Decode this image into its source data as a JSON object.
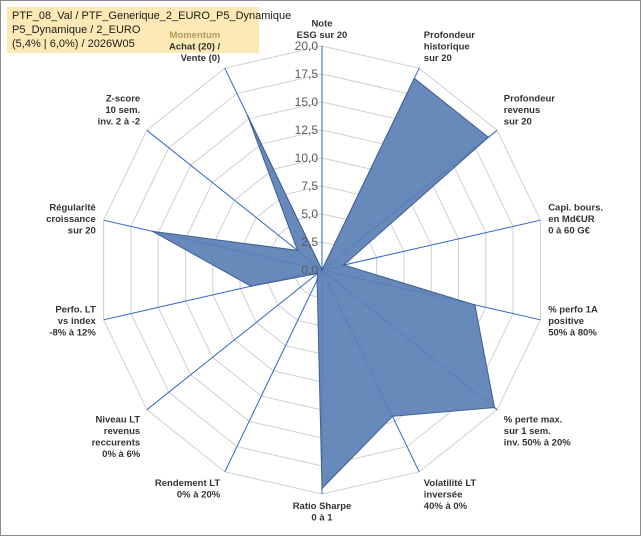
{
  "header": {
    "line1": "PTF_08_Val / PTF_Generique_2_EURO_P5_Dynamique",
    "line2": "P5_Dynamique / 2_EURO",
    "line3": "(5,4% | 6,0%) / 2026W05"
  },
  "colors": {
    "fill": "#5b80b4",
    "stroke": "#3e5f91",
    "spoke": "#2f66c4",
    "grid": "#d0d0d0",
    "title_bg": "#fde9b5"
  },
  "chart_data": {
    "type": "radar",
    "rmax": 20,
    "ticks": [
      0,
      2.5,
      5,
      7.5,
      10,
      12.5,
      15,
      17.5,
      20
    ],
    "tick_labels": [
      "0,0",
      "2,5",
      "5,0",
      "7,5",
      "10,0",
      "12,5",
      "15,0",
      "17,5",
      "20,0"
    ],
    "axes": [
      {
        "label": [
          "Note",
          "ESG sur 20"
        ],
        "value": 0
      },
      {
        "label": [
          "Profondeur",
          "historique",
          "sur 20"
        ],
        "value": 19.0
      },
      {
        "label": [
          "Profondeur",
          "revenus",
          "sur 20"
        ],
        "value": 19.0
      },
      {
        "label": [
          "Capi. bours.",
          "en Md€UR",
          "0 à 60 G€"
        ],
        "value": 2.0
      },
      {
        "label": [
          "% perfo 1A",
          "positive",
          "50% à 80%"
        ],
        "value": 14.0
      },
      {
        "label": [
          "% perte max.",
          "sur 1 sem.",
          "inv. 50% à 20%"
        ],
        "value": 19.7
      },
      {
        "label": [
          "Volatilité LT",
          "inversée",
          "40% à 0%"
        ],
        "value": 14.5
      },
      {
        "label": [
          "Ratio Sharpe",
          "0 à 1"
        ],
        "value": 19.5
      },
      {
        "label": [
          "Rendement LT",
          "0% à 20%"
        ],
        "value": 1.0
      },
      {
        "label": [
          "Niveau LT",
          "revenus",
          "reccurents",
          "0% à 6%"
        ],
        "value": 0.5
      },
      {
        "label": [
          "Perfo. LT",
          "vs index",
          "-8% à 12%"
        ],
        "value": 6.5
      },
      {
        "label": [
          "Régularité",
          "croissance",
          "sur 20"
        ],
        "value": 15.5
      },
      {
        "label": [
          "Z-score",
          "10 sem.",
          "inv. 2 à -2"
        ],
        "value": 2.8
      },
      {
        "label": [
          "Momentum",
          "Achat (20) /",
          "Vente (0)"
        ],
        "value": 15.3
      }
    ]
  }
}
